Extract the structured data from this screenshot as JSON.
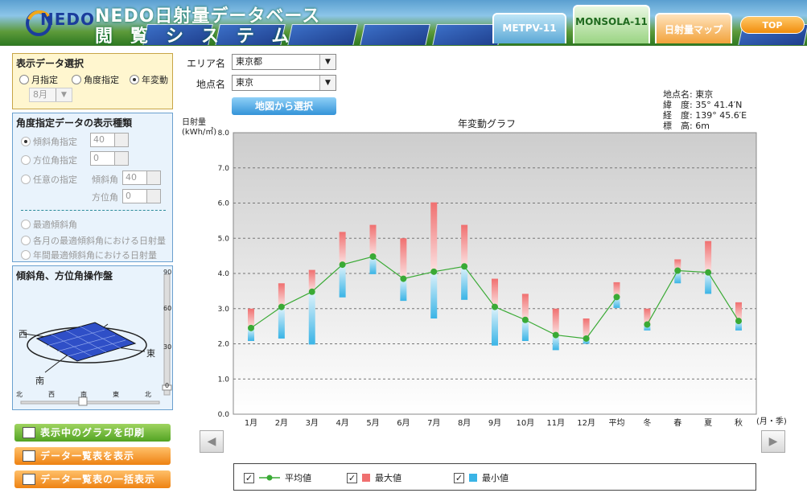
{
  "header": {
    "logo_text": "NEDO",
    "title_line1": "NEDO日射量データベース",
    "title_line2": "閲覧システム",
    "tabs": [
      {
        "label": "METPV-11"
      },
      {
        "label": "MONSOLA-11"
      },
      {
        "label": "日射量マップ"
      }
    ],
    "top_label": "TOP"
  },
  "display_panel": {
    "title": "表示データ選択",
    "options": [
      "月指定",
      "角度指定",
      "年変動"
    ],
    "selected": "年変動",
    "month_value": "8月"
  },
  "angle_panel": {
    "title": "角度指定データの表示種類",
    "tilt_label": "傾斜角指定",
    "tilt_value": "40",
    "azimuth_label": "方位角指定",
    "azimuth_value": "0",
    "arbitrary_label": "任意の指定",
    "arb_tilt_label": "傾斜角",
    "arb_tilt_value": "40",
    "arb_azimuth_label": "方位角",
    "arb_azimuth_value": "0",
    "opt_best": "最適傾斜角",
    "opt_monthly": "各月の最適傾斜角における日射量",
    "opt_annual": "年間最適傾斜角における日射量"
  },
  "control_panel": {
    "title": "傾斜角、方位角操作盤",
    "west": "西",
    "east": "東",
    "south": "南",
    "vscale": [
      "90",
      "60",
      "30",
      "0"
    ],
    "hscale": [
      "北",
      "西",
      "南",
      "東",
      "北"
    ]
  },
  "actions": {
    "print": "表示中のグラフを印刷",
    "table": "データ一覧表を表示",
    "table_all": "データ一覧表の一括表示"
  },
  "location": {
    "area_label": "エリア名",
    "area_value": "東京都",
    "point_label": "地点名",
    "point_value": "東京",
    "map_button": "地図から選択"
  },
  "site_info": {
    "lines": [
      "地点名: 東京",
      "緯　度: 35° 41.4′N",
      "経　度: 139° 45.6′E",
      "標　高: 6m"
    ]
  },
  "legend": {
    "avg": "平均値",
    "max": "最大値",
    "min": "最小値"
  },
  "colors": {
    "avg": "#3aaa35",
    "max": "#f07070",
    "min": "#3ab4e6"
  },
  "chart_data": {
    "type": "line",
    "title": "年変動グラフ",
    "ylabel": "日射量\n(kWh/㎡)",
    "xlabel": "(月・季)",
    "ylim": [
      0,
      8
    ],
    "yticks": [
      "0.0",
      "1.0",
      "2.0",
      "3.0",
      "4.0",
      "5.0",
      "6.0",
      "7.0",
      "8.0"
    ],
    "categories": [
      "1月",
      "2月",
      "3月",
      "4月",
      "5月",
      "6月",
      "7月",
      "8月",
      "9月",
      "10月",
      "11月",
      "12月",
      "平均",
      "冬",
      "春",
      "夏",
      "秋"
    ],
    "series": [
      {
        "name": "平均値",
        "values": [
          2.45,
          3.05,
          3.48,
          4.25,
          4.48,
          3.85,
          4.05,
          4.2,
          3.05,
          2.68,
          2.25,
          2.15,
          3.33,
          2.55,
          4.08,
          4.03,
          2.65
        ]
      },
      {
        "name": "最大値",
        "values": [
          3.0,
          3.72,
          4.1,
          5.18,
          5.38,
          5.0,
          6.02,
          5.38,
          3.85,
          3.42,
          3.0,
          2.72,
          3.75,
          3.0,
          4.4,
          4.92,
          3.18
        ]
      },
      {
        "name": "最小値",
        "values": [
          2.08,
          2.15,
          1.98,
          3.32,
          3.98,
          3.22,
          2.72,
          3.25,
          1.95,
          2.08,
          1.82,
          2.0,
          3.02,
          2.38,
          3.72,
          3.42,
          2.38
        ]
      }
    ],
    "grid": true,
    "legend": "bottom"
  }
}
